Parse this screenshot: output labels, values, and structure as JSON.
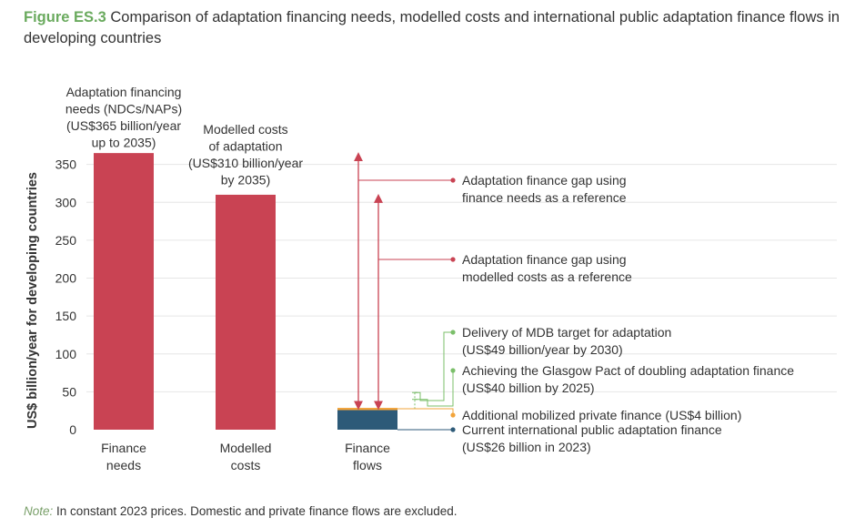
{
  "title": {
    "figure_label": "Figure ES.3",
    "text": "Comparison of adaptation financing needs, modelled costs and international public adaptation finance flows in developing countries"
  },
  "note": {
    "label": "Note:",
    "text": "In constant 2023 prices. Domestic and private finance flows are excluded."
  },
  "colors": {
    "bar_red": "#c94353",
    "bar_blue": "#2d5a78",
    "private_orange": "#f2a43b",
    "green": "#7bbf6a",
    "title_green": "#6aaa5e",
    "grid": "#e6e6e6",
    "text": "#333333"
  },
  "chart_data": {
    "type": "bar",
    "ylabel": "US$ billion/year for developing countries",
    "ylim": [
      0,
      365
    ],
    "yticks": [
      0,
      50,
      100,
      150,
      200,
      250,
      300,
      350
    ],
    "grid": true,
    "categories": [
      "Finance\nneeds",
      "Modelled\ncosts",
      "Finance\nflows"
    ],
    "values": [
      365,
      310,
      26
    ],
    "bar_annotations": [
      [
        "Adaptation financing",
        "needs (NDCs/NAPs)",
        "(US$365 billion/year",
        "up to 2035)"
      ],
      [
        "Modelled costs",
        "of adaptation",
        "(US$310 billion/year",
        "by 2035)"
      ]
    ],
    "stack_on_flows": [
      {
        "label": "Current international public adaptation finance",
        "value": 26
      },
      {
        "label": "Additional mobilized private finance (US$4 billion)",
        "value": 4
      }
    ],
    "targets": [
      {
        "label": "Achieving the Glasgow Pact of doubling adaptation finance",
        "value": 40
      },
      {
        "label": "Delivery of MDB target for adaptation",
        "value": 49
      }
    ],
    "gaps": [
      {
        "label": "Adaptation finance gap using finance needs as a reference",
        "from": 26,
        "to": 365
      },
      {
        "label": "Adaptation finance gap using modelled costs as a reference",
        "from": 26,
        "to": 310
      }
    ],
    "annotations": [
      {
        "lines": [
          "Adaptation finance gap using",
          "finance needs as a reference"
        ],
        "color": "#c94353"
      },
      {
        "lines": [
          "Adaptation finance gap using",
          "modelled costs as a reference"
        ],
        "color": "#c94353"
      },
      {
        "lines": [
          "Delivery of MDB target for adaptation",
          "(US$49 billion/year by 2030)"
        ],
        "color": "#7bbf6a"
      },
      {
        "lines": [
          "Achieving the Glasgow Pact of doubling adaptation finance",
          "(US$40 billion by 2025)"
        ],
        "color": "#7bbf6a"
      },
      {
        "lines": [
          "Additional mobilized private finance (US$4 billion)"
        ],
        "color": "#f2a43b"
      },
      {
        "lines": [
          "Current international public adaptation finance",
          "(US$26 billion in 2023)"
        ],
        "color": "#2d5a78"
      }
    ]
  }
}
